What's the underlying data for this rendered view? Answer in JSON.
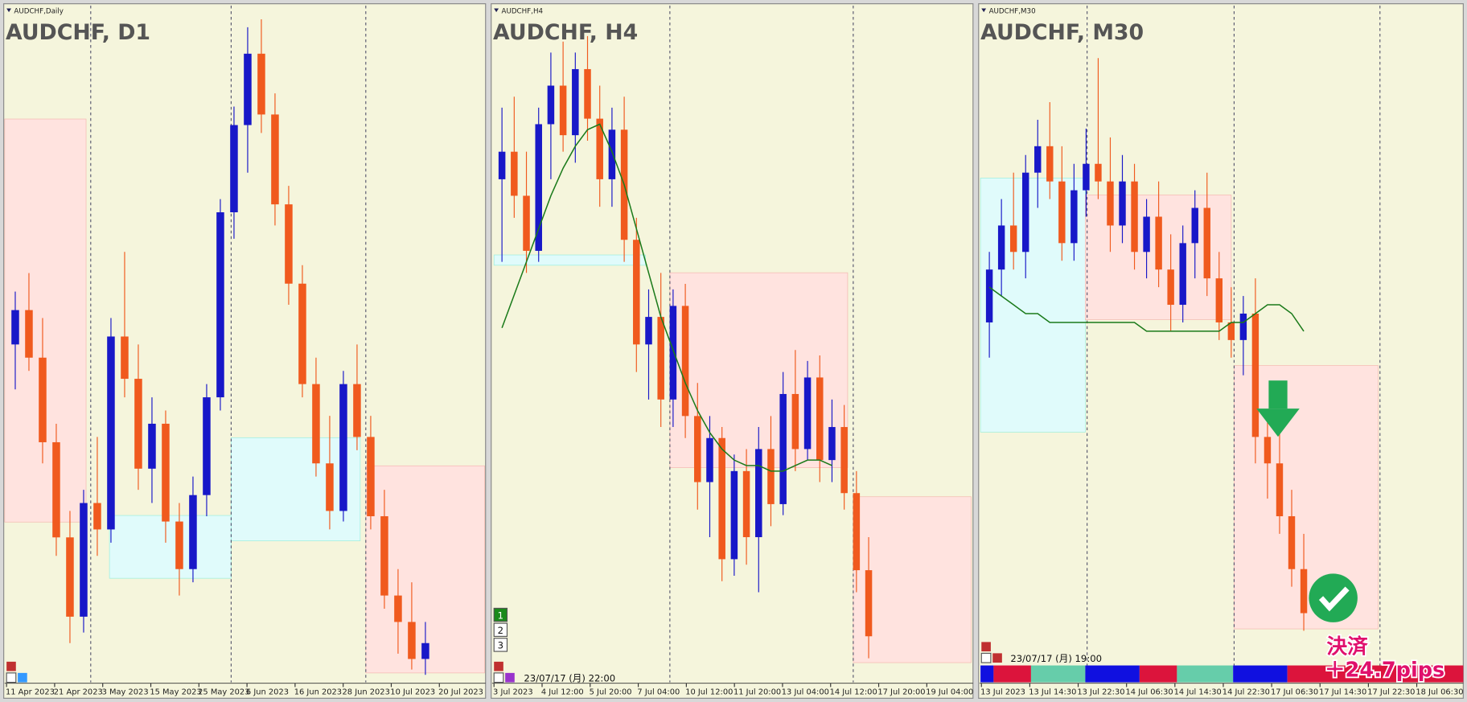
{
  "panels": [
    {
      "label": "AUDCHF,Daily",
      "title": "AUDCHF, D1",
      "x_labels": [
        "11 Apr 2023",
        "21 Apr 2023",
        "3 May 2023",
        "15 May 2023",
        "25 May 2023",
        "6 Jun 2023",
        "16 Jun 2023",
        "28 Jun 2023",
        "10 Jul 2023",
        "20 Jul 2023"
      ],
      "ylim": [
        0.585,
        0.61
      ],
      "candles": [
        [
          0.5975,
          0.5995,
          0.5958,
          0.5988
        ],
        [
          0.5988,
          0.6002,
          0.5965,
          0.597
        ],
        [
          0.597,
          0.5985,
          0.593,
          0.5938
        ],
        [
          0.5938,
          0.5945,
          0.5895,
          0.5902
        ],
        [
          0.5902,
          0.5912,
          0.5862,
          0.5872
        ],
        [
          0.5872,
          0.592,
          0.5866,
          0.5915
        ],
        [
          0.5915,
          0.594,
          0.5895,
          0.5905
        ],
        [
          0.5905,
          0.5985,
          0.59,
          0.5978
        ],
        [
          0.5978,
          0.601,
          0.5955,
          0.5962
        ],
        [
          0.5962,
          0.5975,
          0.592,
          0.5928
        ],
        [
          0.5928,
          0.5955,
          0.5915,
          0.5945
        ],
        [
          0.5945,
          0.595,
          0.59,
          0.5908
        ],
        [
          0.5908,
          0.5915,
          0.588,
          0.589
        ],
        [
          0.589,
          0.5925,
          0.5885,
          0.5918
        ],
        [
          0.5918,
          0.596,
          0.591,
          0.5955
        ],
        [
          0.5955,
          0.603,
          0.595,
          0.6025
        ],
        [
          0.6025,
          0.6065,
          0.6015,
          0.6058
        ],
        [
          0.6058,
          0.6095,
          0.604,
          0.6085
        ],
        [
          0.6085,
          0.6098,
          0.6055,
          0.6062
        ],
        [
          0.6062,
          0.607,
          0.602,
          0.6028
        ],
        [
          0.6028,
          0.6035,
          0.599,
          0.5998
        ],
        [
          0.5998,
          0.6005,
          0.5955,
          0.596
        ],
        [
          0.596,
          0.597,
          0.5925,
          0.593
        ],
        [
          0.593,
          0.5948,
          0.5905,
          0.5912
        ],
        [
          0.5912,
          0.5965,
          0.5908,
          0.596
        ],
        [
          0.596,
          0.5975,
          0.5935,
          0.594
        ],
        [
          0.594,
          0.5948,
          0.5905,
          0.591
        ],
        [
          0.591,
          0.592,
          0.5875,
          0.588
        ],
        [
          0.588,
          0.589,
          0.5858,
          0.587
        ],
        [
          0.587,
          0.5885,
          0.5852,
          0.5856
        ],
        [
          0.5856,
          0.587,
          0.585,
          0.5862
        ]
      ]
    },
    {
      "label": "AUDCHF,H4",
      "title": "AUDCHF, H4",
      "x_labels": [
        "3 Jul 2023",
        "4 Jul 12:00",
        "5 Jul 20:00",
        "7 Jul 04:00",
        "10 Jul 12:00",
        "11 Jul 20:00",
        "13 Jul 04:00",
        "14 Jul 12:00",
        "17 Jul 20:00",
        "19 Jul 04:00"
      ],
      "timestamp": "23/07/17 (月) 22:00",
      "buttons": [
        "1",
        "2",
        "3"
      ],
      "ylim": [
        0.5855,
        0.5975
      ],
      "candles": [
        [
          0.5945,
          0.5958,
          0.593,
          0.595
        ],
        [
          0.595,
          0.596,
          0.5938,
          0.5942
        ],
        [
          0.5942,
          0.595,
          0.5928,
          0.5932
        ],
        [
          0.5932,
          0.5958,
          0.593,
          0.5955
        ],
        [
          0.5955,
          0.5968,
          0.5945,
          0.5962
        ],
        [
          0.5962,
          0.597,
          0.595,
          0.5953
        ],
        [
          0.5953,
          0.5968,
          0.5948,
          0.5965
        ],
        [
          0.5965,
          0.5971,
          0.5952,
          0.5956
        ],
        [
          0.5956,
          0.5962,
          0.594,
          0.5945
        ],
        [
          0.5945,
          0.5958,
          0.594,
          0.5954
        ],
        [
          0.5954,
          0.596,
          0.593,
          0.5934
        ],
        [
          0.5934,
          0.5938,
          0.591,
          0.5915
        ],
        [
          0.5915,
          0.5925,
          0.5905,
          0.592
        ],
        [
          0.592,
          0.5928,
          0.59,
          0.5905
        ],
        [
          0.5905,
          0.5925,
          0.59,
          0.5922
        ],
        [
          0.5922,
          0.5926,
          0.5898,
          0.5902
        ],
        [
          0.5902,
          0.5908,
          0.5885,
          0.589
        ],
        [
          0.589,
          0.5902,
          0.588,
          0.5898
        ],
        [
          0.5898,
          0.59,
          0.5872,
          0.5876
        ],
        [
          0.5876,
          0.5895,
          0.5873,
          0.5892
        ],
        [
          0.5892,
          0.5896,
          0.5875,
          0.588
        ],
        [
          0.588,
          0.59,
          0.587,
          0.5896
        ],
        [
          0.5896,
          0.5902,
          0.5882,
          0.5886
        ],
        [
          0.5886,
          0.591,
          0.5884,
          0.5906
        ],
        [
          0.5906,
          0.5914,
          0.5892,
          0.5896
        ],
        [
          0.5896,
          0.5912,
          0.5894,
          0.5909
        ],
        [
          0.5909,
          0.5913,
          0.589,
          0.5894
        ],
        [
          0.5894,
          0.5905,
          0.589,
          0.59
        ],
        [
          0.59,
          0.5904,
          0.5885,
          0.5888
        ],
        [
          0.5888,
          0.5892,
          0.587,
          0.5874
        ],
        [
          0.5874,
          0.588,
          0.5858,
          0.5862
        ]
      ],
      "ma": [
        0.5918,
        0.5924,
        0.593,
        0.5936,
        0.5942,
        0.5947,
        0.5951,
        0.5954,
        0.5955,
        0.595,
        0.5944,
        0.5936,
        0.5928,
        0.592,
        0.5914,
        0.5908,
        0.5903,
        0.5899,
        0.5896,
        0.5894,
        0.5893,
        0.5893,
        0.5892,
        0.5892,
        0.5893,
        0.5894,
        0.5894,
        0.5893,
        null,
        null,
        null
      ]
    },
    {
      "label": "AUDCHF,M30",
      "title": "AUDCHF, M30",
      "x_labels": [
        "13 Jul 2023",
        "13 Jul 14:30",
        "13 Jul 22:30",
        "14 Jul 06:30",
        "14 Jul 14:30",
        "14 Jul 22:30",
        "17 Jul 06:30",
        "17 Jul 14:30",
        "17 Jul 22:30",
        "18 Jul 06:30"
      ],
      "timestamp": "23/07/17 (月) 19:00",
      "ylim": [
        0.585,
        0.5925
      ],
      "candles": [
        [
          0.589,
          0.5898,
          0.5886,
          0.5896
        ],
        [
          0.5896,
          0.5904,
          0.5893,
          0.5901
        ],
        [
          0.5901,
          0.5907,
          0.5896,
          0.5898
        ],
        [
          0.5898,
          0.5909,
          0.5895,
          0.5907
        ],
        [
          0.5907,
          0.5913,
          0.5903,
          0.591
        ],
        [
          0.591,
          0.5915,
          0.5904,
          0.5906
        ],
        [
          0.5906,
          0.591,
          0.5897,
          0.5899
        ],
        [
          0.5899,
          0.5908,
          0.5897,
          0.5905
        ],
        [
          0.5905,
          0.5912,
          0.5902,
          0.5908
        ],
        [
          0.5908,
          0.592,
          0.5904,
          0.5906
        ],
        [
          0.5906,
          0.5911,
          0.5898,
          0.5901
        ],
        [
          0.5901,
          0.5909,
          0.5899,
          0.5906
        ],
        [
          0.5906,
          0.5908,
          0.5896,
          0.5898
        ],
        [
          0.5898,
          0.5904,
          0.5895,
          0.5902
        ],
        [
          0.5902,
          0.5906,
          0.5894,
          0.5896
        ],
        [
          0.5896,
          0.59,
          0.5889,
          0.5892
        ],
        [
          0.5892,
          0.5901,
          0.589,
          0.5899
        ],
        [
          0.5899,
          0.5905,
          0.5895,
          0.5903
        ],
        [
          0.5903,
          0.5907,
          0.5893,
          0.5895
        ],
        [
          0.5895,
          0.5898,
          0.5888,
          0.589
        ],
        [
          0.589,
          0.5894,
          0.5886,
          0.5888
        ],
        [
          0.5888,
          0.5893,
          0.5884,
          0.5891
        ],
        [
          0.5891,
          0.5895,
          0.5874,
          0.5877
        ],
        [
          0.5877,
          0.588,
          0.587,
          0.5874
        ],
        [
          0.5874,
          0.5878,
          0.5866,
          0.5868
        ],
        [
          0.5868,
          0.5871,
          0.586,
          0.5862
        ],
        [
          0.5862,
          0.5866,
          0.5855,
          0.5857
        ]
      ],
      "ma": [
        0.5894,
        0.5893,
        0.5892,
        0.5891,
        0.5891,
        0.589,
        0.589,
        0.589,
        0.589,
        0.589,
        0.589,
        0.589,
        0.589,
        0.5889,
        0.5889,
        0.5889,
        0.5889,
        0.5889,
        0.5889,
        0.5889,
        0.589,
        0.589,
        0.5891,
        0.5892,
        0.5892,
        0.5891,
        0.5889
      ]
    }
  ],
  "annotation": {
    "text": "決済",
    "pips": "＋24.7pips"
  }
}
